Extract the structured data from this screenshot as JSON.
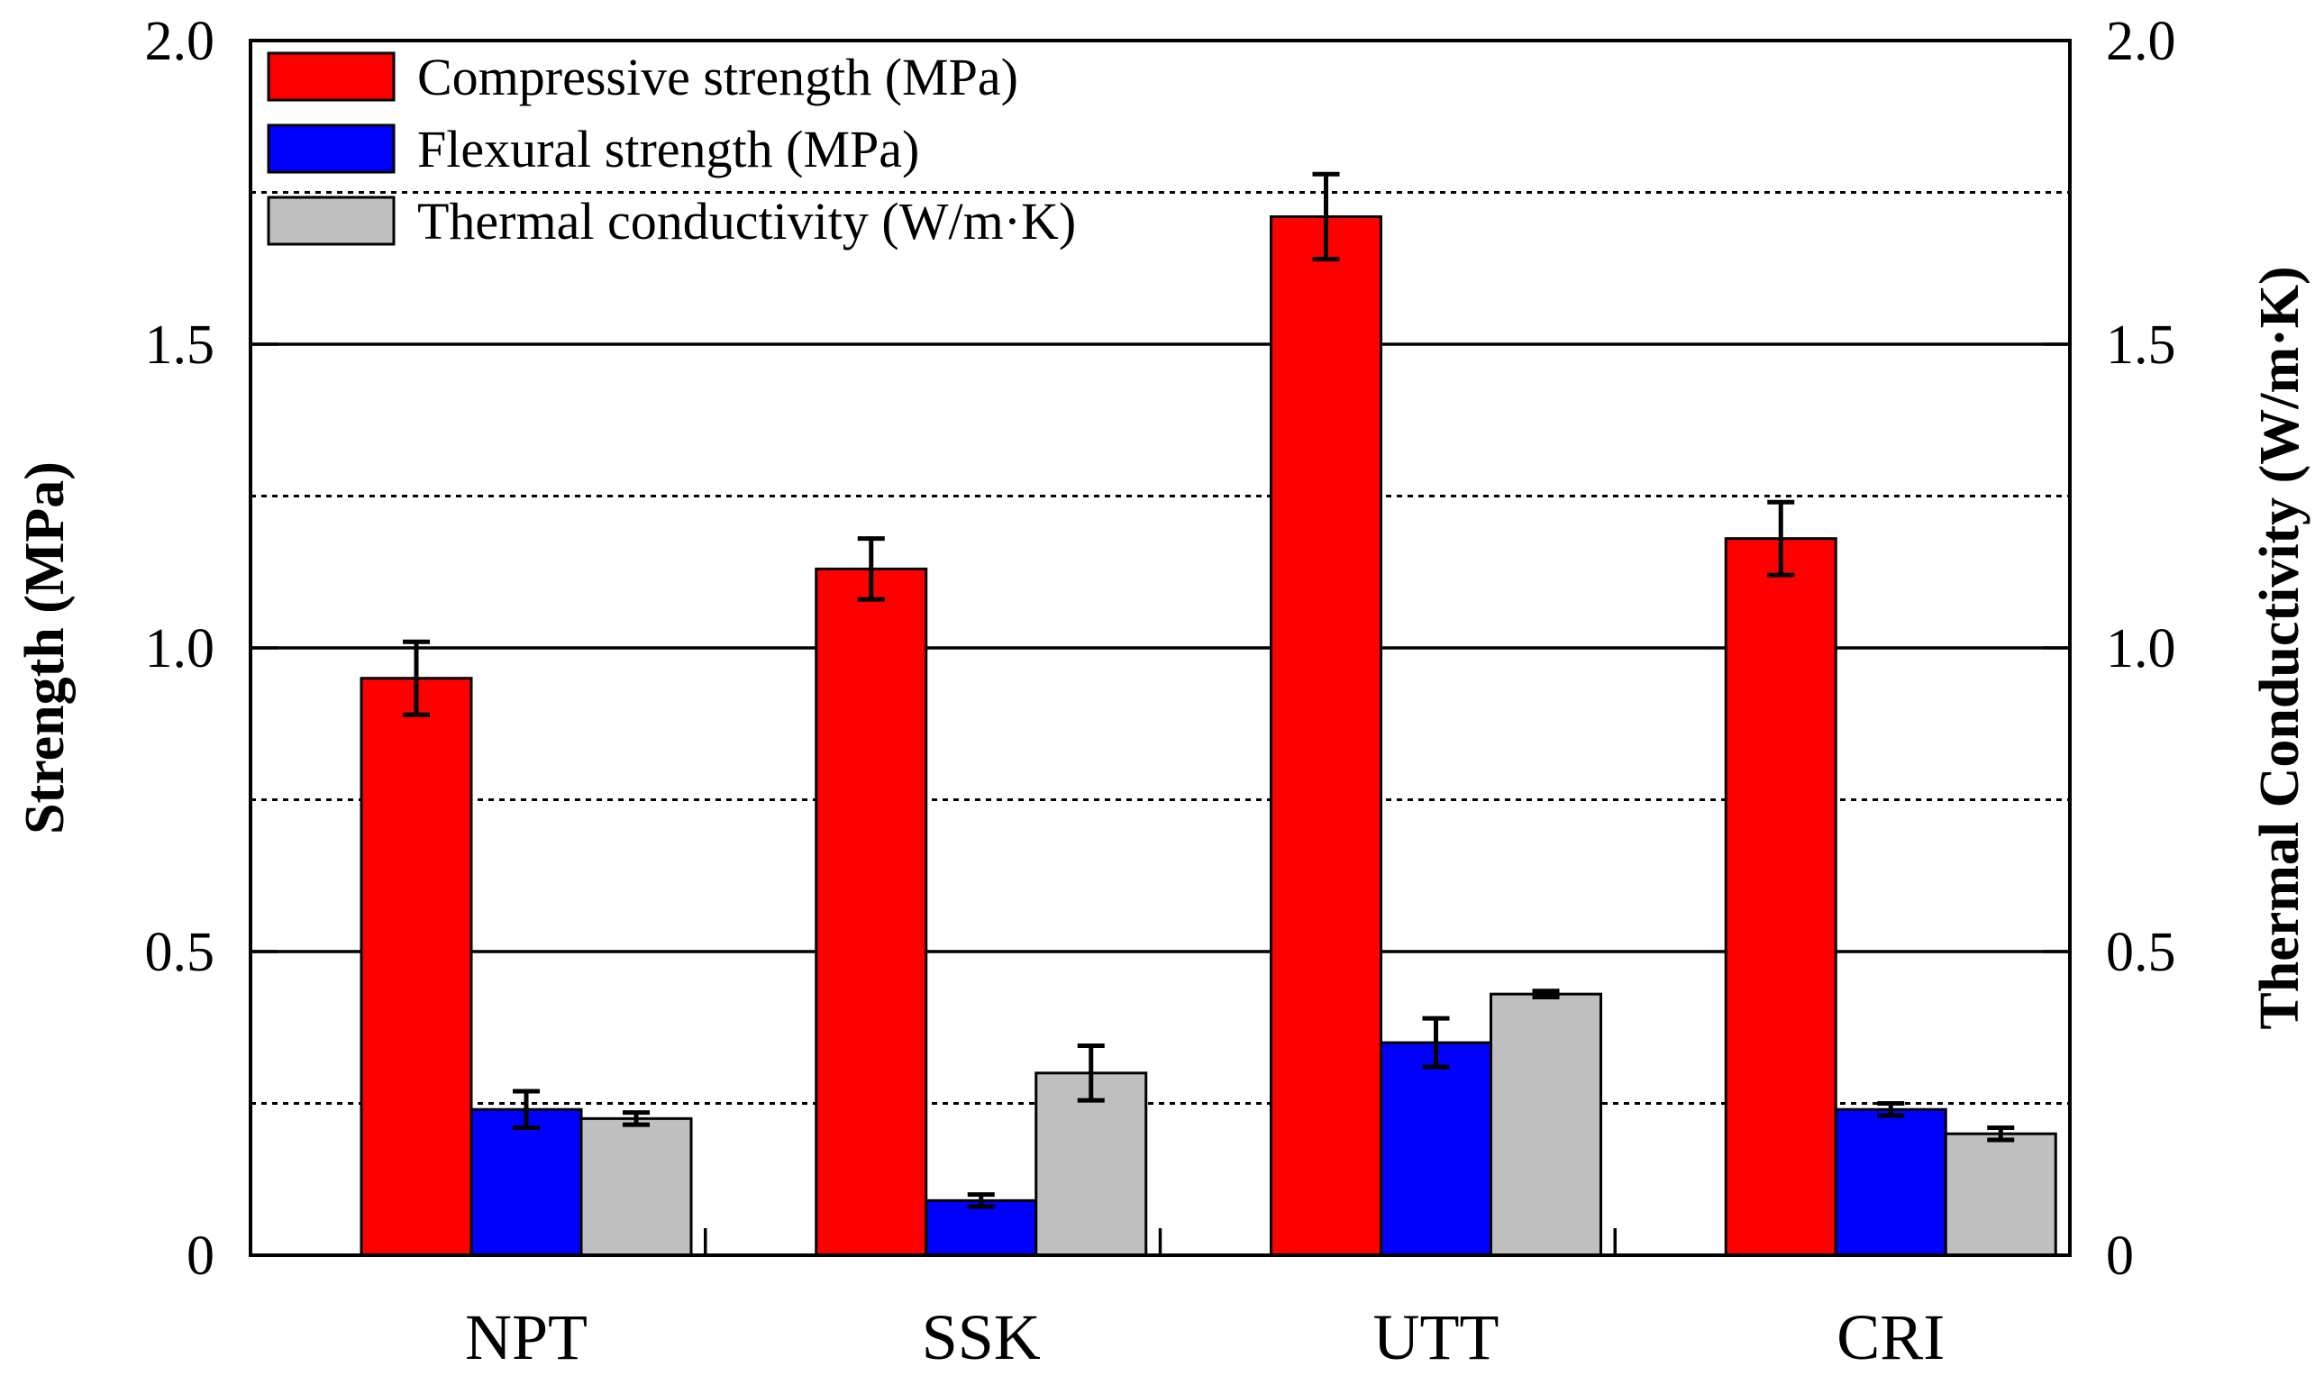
{
  "chart_data": {
    "type": "bar",
    "title": "",
    "categories": [
      "NPT",
      "SSK",
      "UTT",
      "CRI"
    ],
    "series": [
      {
        "name": "Compressive strength (MPa)",
        "color": "#ff0000",
        "axis": "left",
        "values": [
          0.95,
          1.13,
          1.71,
          1.18
        ],
        "errors": [
          0.06,
          0.05,
          0.07,
          0.06
        ]
      },
      {
        "name": "Flexural strength (MPa)",
        "color": "#0000ff",
        "axis": "left",
        "values": [
          0.24,
          0.09,
          0.35,
          0.24
        ],
        "errors": [
          0.03,
          0.01,
          0.04,
          0.01
        ]
      },
      {
        "name": "Thermal conductivity (W/m·K)",
        "color": "#bfbfbf",
        "axis": "right",
        "values": [
          0.225,
          0.3,
          0.43,
          0.2
        ],
        "errors": [
          0.01,
          0.045,
          0.005,
          0.01
        ]
      }
    ],
    "ylabel": "Strength (MPa)",
    "y2label": "Thermal Conductivity (W/m·K)",
    "xlabel": "",
    "ylim": [
      0,
      2.0
    ],
    "y2lim": [
      0,
      2.0
    ],
    "yticks": [
      0,
      0.5,
      1.0,
      1.5,
      2.0
    ],
    "ytick_labels": [
      "0",
      "0.5",
      "1.0",
      "1.5",
      "2.0"
    ],
    "y2ticks": [
      0,
      0.5,
      1.0,
      1.5,
      2.0
    ],
    "y2tick_labels": [
      "0",
      "0.5",
      "1.0",
      "1.5",
      "2.0"
    ],
    "major_grid": [
      0.5,
      1.0,
      1.5
    ],
    "minor_grid_dotted": [
      0.25,
      0.75,
      1.25,
      1.75
    ],
    "legend_position": "top-left"
  }
}
